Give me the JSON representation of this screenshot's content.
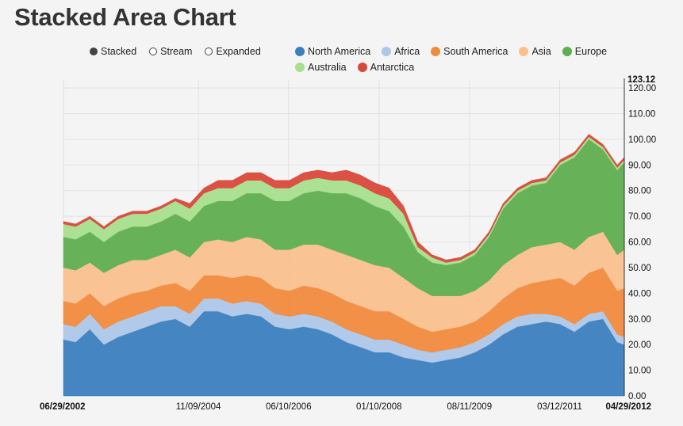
{
  "title": "Stacked Area Chart",
  "controls": [
    {
      "label": "Stacked",
      "selected": true
    },
    {
      "label": "Stream",
      "selected": false
    },
    {
      "label": "Expanded",
      "selected": false
    }
  ],
  "chart_data": {
    "type": "area",
    "stacked": true,
    "title": "",
    "xlabel": "",
    "ylabel": "",
    "ylim": [
      0,
      123.12
    ],
    "y_max_label": "123.12",
    "yticks": [
      "0.00",
      "10.00",
      "20.00",
      "30.00",
      "40.00",
      "50.00",
      "60.00",
      "70.00",
      "80.00",
      "90.00",
      "100.00",
      "110.00",
      "120.00"
    ],
    "x_range": [
      "2002-06-29",
      "2012-04-29"
    ],
    "x_ticks": [
      {
        "label": "06/29/2002",
        "date": "2002-06-29",
        "bold": true
      },
      {
        "label": "11/09/2004",
        "date": "2004-11-09",
        "bold": false
      },
      {
        "label": "06/10/2006",
        "date": "2006-06-10",
        "bold": false
      },
      {
        "label": "01/10/2008",
        "date": "2008-01-10",
        "bold": false
      },
      {
        "label": "08/11/2009",
        "date": "2009-08-11",
        "bold": false
      },
      {
        "label": "03/12/2011",
        "date": "2011-03-12",
        "bold": false
      },
      {
        "label": "04/29/2012",
        "date": "2012-04-29",
        "bold": true
      }
    ],
    "grid": true,
    "legend_position": "top",
    "x": [
      "2002-06",
      "2002-09",
      "2002-12",
      "2003-03",
      "2003-06",
      "2003-09",
      "2003-12",
      "2004-03",
      "2004-06",
      "2004-09",
      "2004-12",
      "2005-03",
      "2005-06",
      "2005-09",
      "2005-12",
      "2006-03",
      "2006-06",
      "2006-09",
      "2006-12",
      "2007-03",
      "2007-06",
      "2007-09",
      "2007-12",
      "2008-03",
      "2008-06",
      "2008-09",
      "2008-12",
      "2009-03",
      "2009-06",
      "2009-09",
      "2009-12",
      "2010-03",
      "2010-06",
      "2010-09",
      "2010-12",
      "2011-03",
      "2011-06",
      "2011-09",
      "2011-12",
      "2012-03",
      "2012-04"
    ],
    "series": [
      {
        "name": "North America",
        "color": "#3b7fbf",
        "values": [
          22,
          21,
          26,
          20,
          23,
          25,
          27,
          29,
          30,
          27,
          33,
          33,
          31,
          32,
          31,
          27,
          26,
          27,
          26,
          24,
          21,
          19,
          17,
          17,
          15,
          14,
          13,
          14,
          15,
          17,
          20,
          24,
          27,
          28,
          29,
          28,
          25,
          29,
          30,
          21,
          20
        ]
      },
      {
        "name": "Africa",
        "color": "#aec7e8",
        "values": [
          6,
          6,
          6,
          6,
          6,
          6,
          6,
          6,
          5,
          5,
          5,
          5,
          5,
          5,
          5,
          5,
          5,
          5,
          5,
          5,
          5,
          5,
          5,
          5,
          5,
          4,
          4,
          4,
          4,
          4,
          4,
          4,
          4,
          4,
          3,
          3,
          3,
          3,
          3,
          3,
          3
        ]
      },
      {
        "name": "South America",
        "color": "#f08a3c",
        "values": [
          9,
          9,
          8,
          9,
          9,
          9,
          8,
          8,
          9,
          9,
          9,
          9,
          10,
          10,
          10,
          10,
          10,
          11,
          11,
          11,
          11,
          11,
          11,
          11,
          10,
          9,
          8,
          8,
          8,
          8,
          9,
          10,
          11,
          12,
          13,
          15,
          15,
          16,
          17,
          17,
          19
        ]
      },
      {
        "name": "Asia",
        "color": "#f9c08e",
        "values": [
          13,
          13,
          12,
          13,
          13,
          13,
          12,
          12,
          13,
          13,
          13,
          14,
          14,
          15,
          15,
          15,
          16,
          16,
          17,
          17,
          18,
          18,
          18,
          17,
          16,
          15,
          14,
          13,
          12,
          12,
          12,
          13,
          13,
          14,
          14,
          14,
          14,
          14,
          14,
          14,
          15
        ]
      },
      {
        "name": "Europe",
        "color": "#5fae4f",
        "values": [
          12,
          12,
          12,
          12,
          13,
          13,
          13,
          13,
          14,
          14,
          14,
          15,
          16,
          17,
          18,
          19,
          19,
          20,
          21,
          22,
          24,
          24,
          23,
          22,
          20,
          14,
          13,
          12,
          13,
          14,
          17,
          22,
          24,
          24,
          24,
          30,
          36,
          38,
          32,
          33,
          34
        ]
      },
      {
        "name": "Australia",
        "color": "#a8df8e",
        "values": [
          5,
          5,
          5,
          5,
          5,
          5,
          5,
          5,
          5,
          5,
          5,
          5,
          5,
          5,
          5,
          5,
          5,
          5,
          5,
          5,
          5,
          5,
          5,
          5,
          5,
          2,
          2,
          1,
          1,
          1,
          1,
          1,
          1,
          1,
          1,
          1,
          1,
          1,
          1,
          1,
          1
        ]
      },
      {
        "name": "Antarctica",
        "color": "#d9483a",
        "values": [
          1,
          1,
          1,
          1,
          1,
          1,
          1,
          1,
          1,
          2,
          2,
          3,
          3,
          3,
          3,
          3,
          3,
          3,
          3,
          3,
          4,
          4,
          4,
          4,
          3,
          2,
          1,
          1,
          1,
          1,
          1,
          1,
          1,
          1,
          1,
          1,
          1,
          1,
          1,
          1,
          1
        ]
      }
    ]
  }
}
